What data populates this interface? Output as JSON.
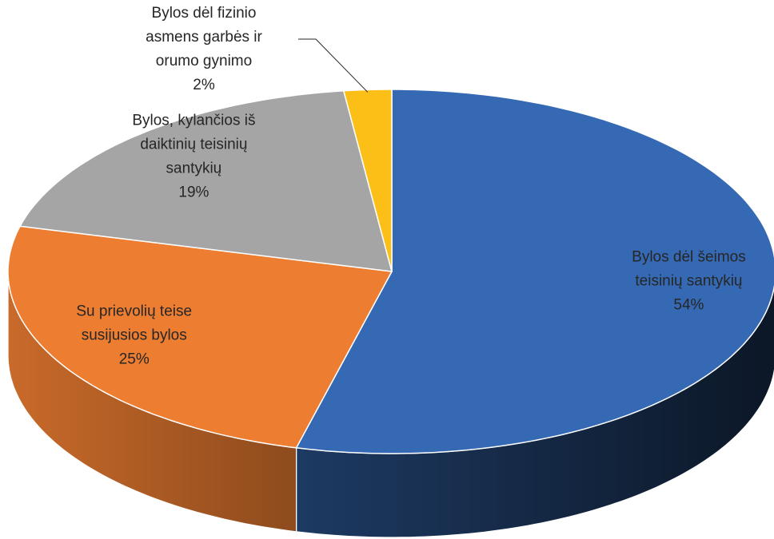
{
  "chart_data": {
    "type": "pie3d",
    "categories": [
      [
        "Bylos dėl šeimos",
        "teisinių santykių"
      ],
      [
        "Su prievolių teise",
        "susijusios bylos"
      ],
      [
        "Bylos, kylančios iš",
        "daiktinių teisinių",
        "santykių"
      ],
      [
        "Bylos dėl fizinio",
        "asmens garbės ir",
        "orumo gynimo"
      ]
    ],
    "values": [
      54,
      25,
      19,
      2
    ],
    "value_labels": [
      "54%",
      "25%",
      "19%",
      "2%"
    ],
    "colors": [
      "#3569b3",
      "#ed7d31",
      "#a5a5a5",
      "#fbbf18"
    ]
  }
}
